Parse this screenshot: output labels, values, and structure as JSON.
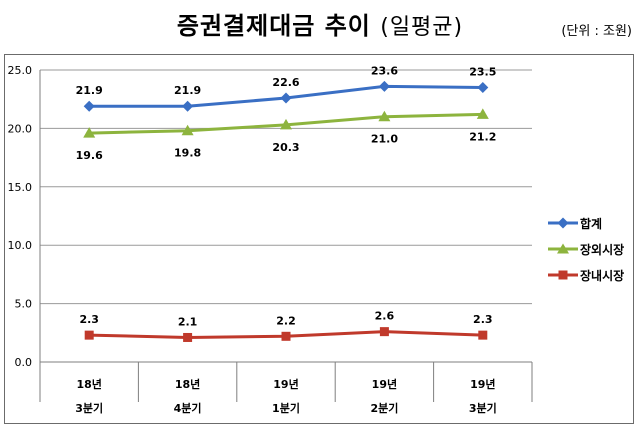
{
  "header": {
    "title_main": "증권결제대금 추이",
    "title_sub": "(일평균)",
    "unit": "(단위 : 조원)"
  },
  "chart_data": {
    "type": "line",
    "categories": [
      [
        "18년",
        "3분기"
      ],
      [
        "18년",
        "4분기"
      ],
      [
        "19년",
        "1분기"
      ],
      [
        "19년",
        "2분기"
      ],
      [
        "19년",
        "3분기"
      ]
    ],
    "ylim": [
      0,
      25
    ],
    "yticks": [
      "0.0",
      "5.0",
      "10.0",
      "15.0",
      "20.0",
      "25.0"
    ],
    "grid": true,
    "legend_position": "right",
    "series": [
      {
        "name": "합계",
        "color": "#3a6fc4",
        "marker": "diamond",
        "values": [
          21.9,
          21.9,
          22.6,
          23.6,
          23.5
        ],
        "labels": [
          "21.9",
          "21.9",
          "22.6",
          "23.6",
          "23.5"
        ]
      },
      {
        "name": "장외시장",
        "color": "#8db43e",
        "marker": "triangle",
        "values": [
          19.6,
          19.8,
          20.3,
          21.0,
          21.2
        ],
        "labels": [
          "19.6",
          "19.8",
          "20.3",
          "21.0",
          "21.2"
        ]
      },
      {
        "name": "장내시장",
        "color": "#c0392b",
        "marker": "square",
        "values": [
          2.3,
          2.1,
          2.2,
          2.6,
          2.3
        ],
        "labels": [
          "2.3",
          "2.1",
          "2.2",
          "2.6",
          "2.3"
        ]
      }
    ]
  }
}
